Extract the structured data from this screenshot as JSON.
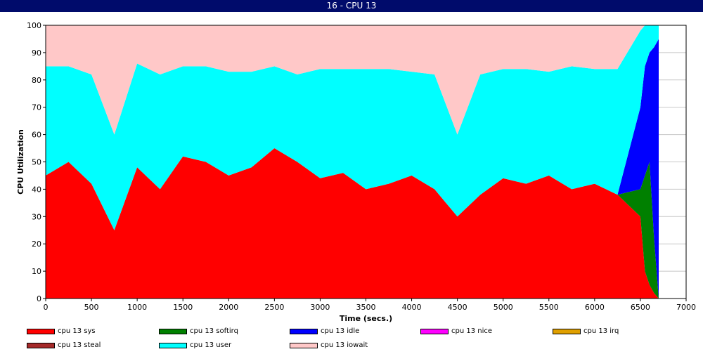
{
  "window": {
    "title": "16 - CPU 13"
  },
  "chart_data": {
    "type": "area",
    "title": "",
    "xlabel": "Time (secs.)",
    "ylabel": "CPU Utilization",
    "xlim": [
      0,
      7000
    ],
    "ylim": [
      0,
      100
    ],
    "xticks": [
      0,
      500,
      1000,
      1500,
      2000,
      2500,
      3000,
      3500,
      4000,
      4500,
      5000,
      5500,
      6000,
      6500,
      7000
    ],
    "yticks": [
      0,
      10,
      20,
      30,
      40,
      50,
      60,
      70,
      80,
      90,
      100
    ],
    "grid": "horizontal",
    "legend_placement": "bottom",
    "stacked": true,
    "x": [
      0,
      250,
      500,
      750,
      1000,
      1250,
      1500,
      1750,
      2000,
      2250,
      2500,
      2750,
      3000,
      3250,
      3500,
      3750,
      4000,
      4250,
      4500,
      4750,
      5000,
      5250,
      5500,
      5750,
      6000,
      6250,
      6500,
      6550,
      6600,
      6650,
      6700
    ],
    "series": [
      {
        "name": "cpu 13 sys",
        "color": "#ff0000",
        "values": [
          45,
          50,
          42,
          25,
          48,
          40,
          52,
          50,
          45,
          48,
          55,
          50,
          44,
          46,
          40,
          42,
          45,
          40,
          30,
          38,
          44,
          42,
          45,
          40,
          42,
          38,
          30,
          10,
          5,
          2,
          0
        ]
      },
      {
        "name": "cpu 13 softirq",
        "color": "#008000",
        "values": [
          0,
          0,
          0,
          0,
          0,
          0,
          0,
          0,
          0,
          0,
          0,
          0,
          0,
          0,
          0,
          0,
          0,
          0,
          0,
          0,
          0,
          0,
          0,
          0,
          0,
          0,
          10,
          35,
          45,
          20,
          0
        ]
      },
      {
        "name": "cpu 13 idle",
        "color": "#0000ff",
        "values": [
          0,
          0,
          0,
          0,
          0,
          0,
          0,
          0,
          0,
          0,
          0,
          0,
          0,
          0,
          0,
          0,
          0,
          0,
          0,
          0,
          0,
          0,
          0,
          0,
          0,
          0,
          30,
          40,
          40,
          70,
          95
        ]
      },
      {
        "name": "cpu 13 nice",
        "color": "#ff00ff",
        "values": [
          0,
          0,
          0,
          0,
          0,
          0,
          0,
          0,
          0,
          0,
          0,
          0,
          0,
          0,
          0,
          0,
          0,
          0,
          0,
          0,
          0,
          0,
          0,
          0,
          0,
          0,
          0,
          0,
          0,
          0,
          0
        ]
      },
      {
        "name": "cpu 13 irq",
        "color": "#e0a000",
        "values": [
          0,
          0,
          0,
          0,
          0,
          0,
          0,
          0,
          0,
          0,
          0,
          0,
          0,
          0,
          0,
          0,
          0,
          0,
          0,
          0,
          0,
          0,
          0,
          0,
          0,
          0,
          0,
          0,
          0,
          0,
          0
        ]
      },
      {
        "name": "cpu 13 steal",
        "color": "#a52a2a",
        "values": [
          0,
          0,
          0,
          0,
          0,
          0,
          0,
          0,
          0,
          0,
          0,
          0,
          0,
          0,
          0,
          0,
          0,
          0,
          0,
          0,
          0,
          0,
          0,
          0,
          0,
          0,
          0,
          0,
          0,
          0,
          0
        ]
      },
      {
        "name": "cpu 13 user",
        "color": "#00ffff",
        "values": [
          40,
          35,
          40,
          35,
          38,
          42,
          33,
          35,
          38,
          35,
          30,
          32,
          40,
          38,
          44,
          42,
          38,
          42,
          30,
          44,
          40,
          42,
          38,
          45,
          42,
          46,
          28,
          15,
          10,
          8,
          5
        ]
      },
      {
        "name": "cpu 13 iowait",
        "color": "#ffc8c8",
        "values": [
          15,
          15,
          18,
          40,
          14,
          18,
          15,
          15,
          17,
          17,
          15,
          18,
          16,
          16,
          16,
          16,
          17,
          18,
          40,
          18,
          16,
          16,
          17,
          15,
          16,
          16,
          2,
          0,
          0,
          0,
          0
        ]
      }
    ]
  }
}
